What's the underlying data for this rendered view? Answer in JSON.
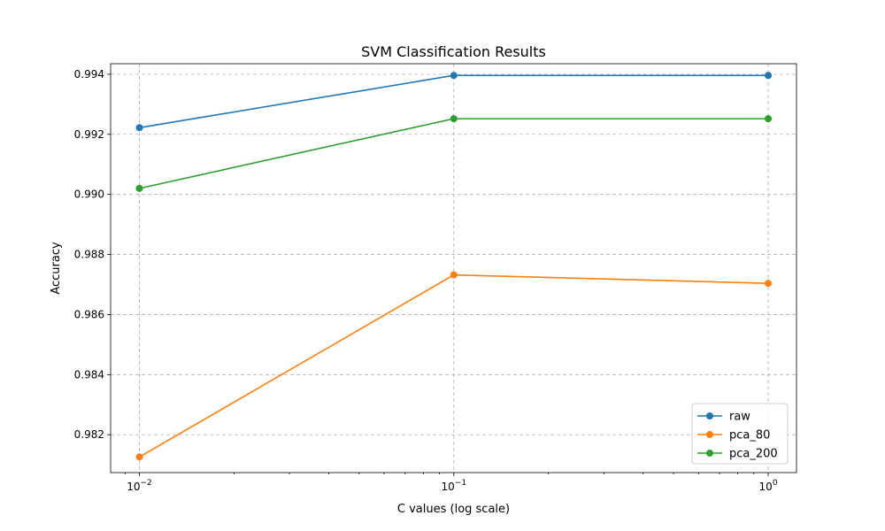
{
  "chart_data": {
    "type": "line",
    "title": "SVM Classification Results",
    "xlabel": "C values (log scale)",
    "ylabel": "Accuracy",
    "x_scale": "log",
    "x": [
      0.01,
      0.1,
      1
    ],
    "x_tick_labels": [
      {
        "base": "10",
        "exp": "−2"
      },
      {
        "base": "10",
        "exp": "−1"
      },
      {
        "base": "10",
        "exp": "0"
      }
    ],
    "y_ticks": [
      "0.982",
      "0.984",
      "0.986",
      "0.988",
      "0.990",
      "0.992",
      "0.994"
    ],
    "xlim": [
      0.0081,
      1.23
    ],
    "ylim": [
      0.98074,
      0.99435
    ],
    "grid": true,
    "legend_position": "lower-right",
    "series": [
      {
        "name": "raw",
        "color": "#1f77b4",
        "values": [
          0.99222,
          0.99396,
          0.99396
        ]
      },
      {
        "name": "pca_80",
        "color": "#ff7f0e",
        "values": [
          0.98126,
          0.98732,
          0.98704
        ]
      },
      {
        "name": "pca_200",
        "color": "#2ca02c",
        "values": [
          0.9902,
          0.99252,
          0.99252
        ]
      }
    ]
  }
}
